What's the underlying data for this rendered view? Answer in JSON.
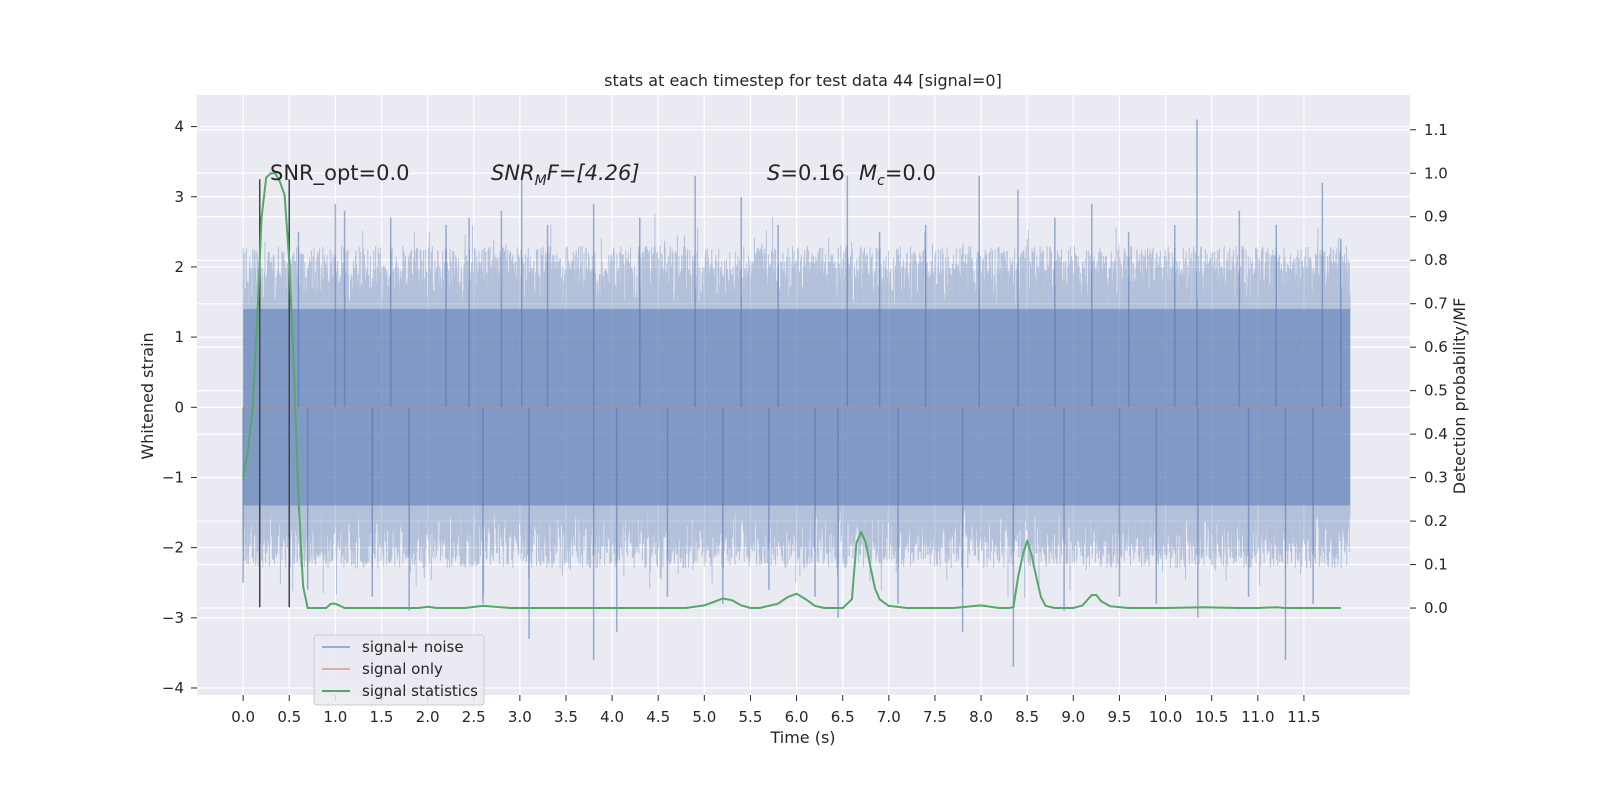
{
  "chart_data": {
    "type": "line",
    "title": "stats at each timestep for test data 44 [signal=0]",
    "xlabel": "Time (s)",
    "ylabel": "Whitened strain",
    "ylabel_right": "Detection probability/MF",
    "xlim": [
      -0.5,
      12.65
    ],
    "ylim": [
      -4.1,
      4.45
    ],
    "ylim_right": [
      -0.2,
      1.18
    ],
    "x_ticks": [
      "0.0",
      "0.5",
      "1.0",
      "1.5",
      "2.0",
      "2.5",
      "3.0",
      "3.5",
      "4.0",
      "4.5",
      "5.0",
      "5.5",
      "6.0",
      "6.5",
      "7.0",
      "7.5",
      "8.0",
      "8.5",
      "9.0",
      "9.5",
      "10.0",
      "10.5",
      "11.0",
      "11.5"
    ],
    "y_ticks": [
      "4",
      "3",
      "2",
      "1",
      "0",
      "−1",
      "−2",
      "−3",
      "−4"
    ],
    "y_ticks_right": [
      "1.1",
      "1.0",
      "0.9",
      "0.8",
      "0.7",
      "0.6",
      "0.5",
      "0.4",
      "0.3",
      "0.2",
      "0.1",
      "0.0"
    ],
    "grid": true,
    "legend_position": "lower-left",
    "annotations": {
      "snr_opt": "SNR_opt=0.0",
      "snr_mf_prefix": "SNR",
      "snr_mf_sub": "M",
      "snr_mf_suffix": "F=[4.26]",
      "s_prefix": "S",
      "s_suffix": "=0.16",
      "mc_prefix": "M",
      "mc_sub": "c",
      "mc_suffix": "=0.0"
    },
    "markers_x": [
      0.18,
      0.5
    ],
    "colors": {
      "background": "#eaeaf2",
      "signal_noise": "#4c72b0",
      "signal_only": "#dd8452",
      "statistics": "#55a868"
    },
    "series": [
      {
        "name": "signal+ noise",
        "axis": "left",
        "t_end": 12.0,
        "core_band": [
          -1.4,
          1.4
        ],
        "spikes": [
          [
            10.34,
            4.1
          ],
          [
            3.02,
            3.3
          ],
          [
            4.9,
            3.3
          ],
          [
            6.55,
            3.3
          ],
          [
            7.98,
            3.3
          ],
          [
            11.7,
            3.2
          ],
          [
            1.0,
            2.9
          ],
          [
            1.1,
            2.8
          ],
          [
            2.45,
            2.7
          ],
          [
            3.8,
            2.9
          ],
          [
            5.4,
            3.0
          ],
          [
            8.4,
            3.1
          ],
          [
            9.2,
            2.9
          ],
          [
            10.8,
            2.8
          ],
          [
            11.9,
            2.4
          ],
          [
            3.1,
            -3.3
          ],
          [
            3.8,
            -3.6
          ],
          [
            4.05,
            -3.2
          ],
          [
            6.45,
            -3.0
          ],
          [
            7.8,
            -3.2
          ],
          [
            8.35,
            -3.7
          ],
          [
            10.35,
            -3.0
          ],
          [
            11.3,
            -3.6
          ],
          [
            1.8,
            -2.9
          ],
          [
            0.0,
            -2.5
          ],
          [
            0.6,
            2.5
          ],
          [
            1.6,
            2.7
          ],
          [
            2.2,
            2.6
          ],
          [
            2.8,
            2.8
          ],
          [
            3.3,
            2.6
          ],
          [
            4.3,
            2.7
          ],
          [
            5.8,
            2.6
          ],
          [
            6.9,
            2.5
          ],
          [
            7.4,
            2.6
          ],
          [
            8.8,
            2.7
          ],
          [
            9.6,
            2.5
          ],
          [
            10.1,
            2.6
          ],
          [
            11.2,
            2.6
          ],
          [
            0.7,
            -2.6
          ],
          [
            1.4,
            -2.7
          ],
          [
            2.6,
            -2.8
          ],
          [
            4.6,
            -2.7
          ],
          [
            5.2,
            -2.8
          ],
          [
            5.7,
            -2.6
          ],
          [
            6.2,
            -2.7
          ],
          [
            7.1,
            -2.8
          ],
          [
            8.9,
            -2.9
          ],
          [
            9.5,
            -2.7
          ],
          [
            9.9,
            -2.8
          ],
          [
            10.9,
            -2.7
          ],
          [
            11.6,
            -2.8
          ]
        ]
      },
      {
        "name": "signal only",
        "axis": "left",
        "x": [
          0.0,
          12.0
        ],
        "y": [
          0.0,
          0.0
        ]
      },
      {
        "name": "signal statistics",
        "axis": "right",
        "x": [
          0.0,
          0.05,
          0.1,
          0.15,
          0.2,
          0.25,
          0.3,
          0.35,
          0.4,
          0.45,
          0.5,
          0.55,
          0.6,
          0.65,
          0.7,
          0.8,
          0.9,
          0.95,
          1.0,
          1.1,
          1.5,
          1.9,
          2.0,
          2.1,
          2.4,
          2.6,
          2.9,
          4.8,
          5.0,
          5.1,
          5.2,
          5.3,
          5.4,
          5.5,
          5.6,
          5.8,
          5.9,
          6.0,
          6.1,
          6.2,
          6.3,
          6.5,
          6.6,
          6.65,
          6.7,
          6.75,
          6.8,
          6.85,
          6.9,
          7.0,
          7.2,
          7.5,
          7.7,
          7.9,
          8.0,
          8.1,
          8.2,
          8.3,
          8.35,
          8.4,
          8.45,
          8.5,
          8.55,
          8.6,
          8.65,
          8.7,
          8.8,
          9.0,
          9.1,
          9.15,
          9.2,
          9.25,
          9.3,
          9.4,
          9.6,
          10.0,
          10.4,
          10.8,
          11.0,
          11.2,
          11.3,
          11.5,
          11.9
        ],
        "y": [
          0.3,
          0.36,
          0.45,
          0.65,
          0.9,
          0.99,
          1.0,
          1.0,
          0.98,
          0.95,
          0.8,
          0.55,
          0.25,
          0.05,
          0.0,
          0.0,
          0.0,
          0.01,
          0.01,
          0.0,
          0.0,
          0.0,
          0.003,
          0.0,
          0.0,
          0.005,
          0.0,
          0.0,
          0.006,
          0.014,
          0.022,
          0.018,
          0.006,
          0.0,
          0.0,
          0.01,
          0.025,
          0.033,
          0.02,
          0.005,
          0.0,
          0.0,
          0.02,
          0.15,
          0.175,
          0.15,
          0.095,
          0.045,
          0.02,
          0.005,
          0.0,
          0.0,
          0.0,
          0.004,
          0.006,
          0.003,
          0.0,
          0.0,
          0.002,
          0.07,
          0.12,
          0.155,
          0.12,
          0.07,
          0.025,
          0.005,
          0.0,
          0.0,
          0.006,
          0.018,
          0.03,
          0.03,
          0.016,
          0.004,
          0.0,
          0.0,
          0.002,
          0.0,
          0.0,
          0.002,
          0.0,
          0.0,
          0.0
        ]
      }
    ]
  }
}
